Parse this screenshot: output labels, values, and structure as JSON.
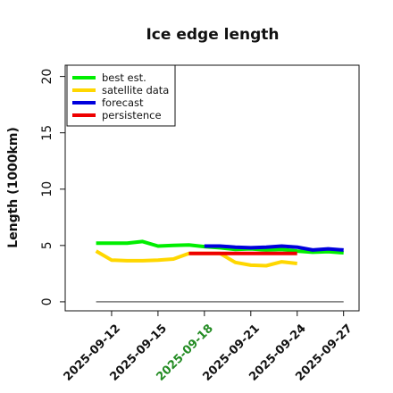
{
  "chart_data": {
    "type": "line",
    "title": "Ice edge length",
    "xlabel": "",
    "ylabel": "Length (1000km)",
    "ylim": [
      -0.8,
      21
    ],
    "xlim": [
      "2025-09-09",
      "2025-09-28"
    ],
    "y_ticks": [
      0,
      5,
      10,
      15,
      20
    ],
    "x_ticks": [
      "2025-09-12",
      "2025-09-15",
      "2025-09-18",
      "2025-09-21",
      "2025-09-24",
      "2025-09-27"
    ],
    "x_tick_colors": [
      "#111111",
      "#111111",
      "#228B22",
      "#111111",
      "#111111",
      "#111111"
    ],
    "grid": false,
    "legend_position": "top-left",
    "series": [
      {
        "name": "best est.",
        "color": "#00ee00",
        "x": [
          "2025-09-11",
          "2025-09-12",
          "2025-09-13",
          "2025-09-14",
          "2025-09-15",
          "2025-09-16",
          "2025-09-17",
          "2025-09-18",
          "2025-09-19",
          "2025-09-20",
          "2025-09-21",
          "2025-09-22",
          "2025-09-23",
          "2025-09-24",
          "2025-09-25",
          "2025-09-26",
          "2025-09-27"
        ],
        "values": [
          5.2,
          5.2,
          5.2,
          5.35,
          4.95,
          5.0,
          5.05,
          4.9,
          4.8,
          4.65,
          4.7,
          4.6,
          4.65,
          4.5,
          4.4,
          4.45,
          4.35
        ]
      },
      {
        "name": "satellite data",
        "color": "#ffd700",
        "x": [
          "2025-09-11",
          "2025-09-12",
          "2025-09-13",
          "2025-09-14",
          "2025-09-15",
          "2025-09-16",
          "2025-09-17",
          "2025-09-18",
          "2025-09-19",
          "2025-09-20",
          "2025-09-21",
          "2025-09-22",
          "2025-09-23",
          "2025-09-24"
        ],
        "values": [
          4.5,
          3.7,
          3.65,
          3.65,
          3.7,
          3.8,
          4.3,
          4.3,
          4.3,
          3.5,
          3.25,
          3.2,
          3.55,
          3.4
        ]
      },
      {
        "name": "forecast",
        "color": "#0000dd",
        "x": [
          "2025-09-18",
          "2025-09-19",
          "2025-09-20",
          "2025-09-21",
          "2025-09-22",
          "2025-09-23",
          "2025-09-24",
          "2025-09-25",
          "2025-09-26",
          "2025-09-27"
        ],
        "values": [
          4.95,
          4.95,
          4.85,
          4.8,
          4.85,
          4.95,
          4.85,
          4.6,
          4.7,
          4.6
        ]
      },
      {
        "name": "persistence",
        "color": "#ee0000",
        "x": [
          "2025-09-17",
          "2025-09-24"
        ],
        "values": [
          4.3,
          4.3
        ]
      }
    ],
    "baseline": {
      "color": "#777777",
      "x": [
        "2025-09-11",
        "2025-09-27"
      ],
      "values": [
        0,
        0
      ]
    }
  }
}
